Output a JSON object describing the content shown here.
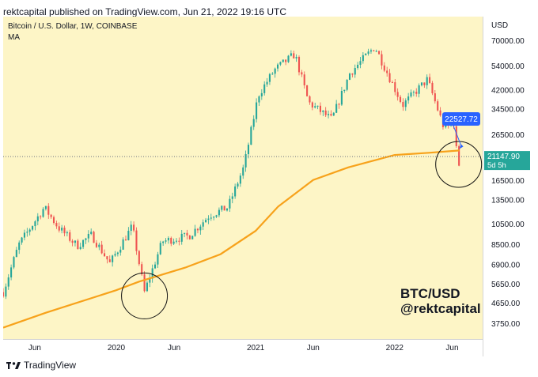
{
  "header": "rektcapital published on TradingView.com, Jun 21, 2022 19:16 UTC",
  "footer": {
    "brand": "TradingView",
    "logo_icon": "tradingview-logo-icon"
  },
  "colors": {
    "background": "#fdf5c6",
    "up": "#26a69a",
    "down": "#ef5350",
    "ma": "#f7a21b",
    "price_tag": "#26a69a",
    "callout": "#2962ff"
  },
  "chart_data": {
    "type": "candlestick",
    "symbol_line": "Bitcoin / U.S. Dollar, 1W, COINBASE",
    "indicator_label": "MA",
    "currency_label": "USD",
    "y_scale": "log",
    "ylim": [
      3200,
      90000
    ],
    "y_ticks": [
      "70000.00",
      "54000.00",
      "42000.00",
      "34500.00",
      "26500.00",
      "16500.00",
      "13500.00",
      "10500.00",
      "8500.00",
      "6900.00",
      "5650.00",
      "4650.00",
      "3750.00"
    ],
    "x_ticks": [
      "Jun",
      "2020",
      "Jun",
      "2021",
      "Jun",
      "2022",
      "Jun"
    ],
    "last_price": "21147.90",
    "countdown": "5d 5h",
    "callout_value": "22527.72",
    "watermark": [
      "BTC/USD",
      "@rektcapital"
    ],
    "ma_points": [
      {
        "date": "2019-03-10",
        "value": 3600
      },
      {
        "date": "2019-06-30",
        "value": 4200
      },
      {
        "date": "2019-12-31",
        "value": 5300
      },
      {
        "date": "2020-03-01",
        "value": 5800
      },
      {
        "date": "2020-06-30",
        "value": 6700
      },
      {
        "date": "2020-10-01",
        "value": 7700
      },
      {
        "date": "2021-01-01",
        "value": 9800
      },
      {
        "date": "2021-03-01",
        "value": 12600
      },
      {
        "date": "2021-06-01",
        "value": 16600
      },
      {
        "date": "2021-09-01",
        "value": 18900
      },
      {
        "date": "2022-01-01",
        "value": 21500
      },
      {
        "date": "2022-04-01",
        "value": 22000
      },
      {
        "date": "2022-06-20",
        "value": 22527.72
      }
    ],
    "price_path": [
      {
        "date": "2019-03-10",
        "value": 5200
      },
      {
        "date": "2019-04-20",
        "value": 8500
      },
      {
        "date": "2019-06-26",
        "value": 12500
      },
      {
        "date": "2019-08-01",
        "value": 10200
      },
      {
        "date": "2019-09-20",
        "value": 8400
      },
      {
        "date": "2019-10-28",
        "value": 9400
      },
      {
        "date": "2019-12-15",
        "value": 7000
      },
      {
        "date": "2020-02-12",
        "value": 10300
      },
      {
        "date": "2020-03-15",
        "value": 5200
      },
      {
        "date": "2020-05-01",
        "value": 8800
      },
      {
        "date": "2020-07-10",
        "value": 9300
      },
      {
        "date": "2020-09-01",
        "value": 11500
      },
      {
        "date": "2020-10-20",
        "value": 12500
      },
      {
        "date": "2020-12-01",
        "value": 19000
      },
      {
        "date": "2021-01-08",
        "value": 40000
      },
      {
        "date": "2021-02-20",
        "value": 52000
      },
      {
        "date": "2021-04-14",
        "value": 61000
      },
      {
        "date": "2021-05-20",
        "value": 37000
      },
      {
        "date": "2021-07-20",
        "value": 31000
      },
      {
        "date": "2021-09-05",
        "value": 50000
      },
      {
        "date": "2021-11-10",
        "value": 66000
      },
      {
        "date": "2022-01-22",
        "value": 36000
      },
      {
        "date": "2022-03-28",
        "value": 47000
      },
      {
        "date": "2022-05-12",
        "value": 28000
      },
      {
        "date": "2022-06-05",
        "value": 30000
      },
      {
        "date": "2022-06-18",
        "value": 18000
      },
      {
        "date": "2022-06-20",
        "value": 21147.9
      }
    ],
    "highlighted_zones": [
      {
        "date": "2020-03-15",
        "value": 5000
      },
      {
        "date": "2022-06-18",
        "value": 19500
      }
    ]
  }
}
